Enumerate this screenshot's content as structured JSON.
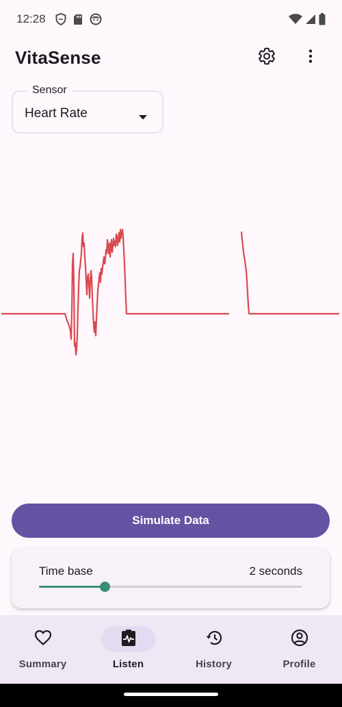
{
  "status_bar": {
    "time": "12:28",
    "left_icons": [
      "shield-icon",
      "sd-card-icon",
      "face-icon"
    ],
    "right_icons": [
      "wifi-icon",
      "signal-icon",
      "battery-icon"
    ]
  },
  "app_bar": {
    "title": "VitaSense",
    "actions": [
      "settings-icon",
      "more-vert-icon"
    ]
  },
  "sensor": {
    "label": "Sensor",
    "value": "Heart Rate"
  },
  "waveform": {
    "color": "#d94a50",
    "segments": [
      [
        [
          2,
          258
        ],
        [
          95,
          258
        ],
        [
          98,
          268
        ],
        [
          101,
          275
        ],
        [
          103,
          283
        ],
        [
          104,
          295
        ],
        [
          105,
          255
        ],
        [
          106,
          185
        ],
        [
          107,
          170
        ],
        [
          108,
          215
        ],
        [
          109,
          305
        ],
        [
          110,
          300
        ],
        [
          111,
          318
        ],
        [
          112,
          310
        ],
        [
          113,
          290
        ],
        [
          114,
          250
        ],
        [
          115,
          220
        ],
        [
          116,
          195
        ],
        [
          117,
          190
        ],
        [
          118,
          180
        ],
        [
          119,
          170
        ],
        [
          120,
          148
        ],
        [
          121,
          140
        ],
        [
          122,
          160
        ],
        [
          123,
          155
        ],
        [
          124,
          175
        ],
        [
          125,
          190
        ],
        [
          126,
          210
        ],
        [
          127,
          230
        ],
        [
          128,
          205
        ],
        [
          129,
          200
        ],
        [
          130,
          215
        ],
        [
          131,
          235
        ],
        [
          132,
          210
        ],
        [
          133,
          195
        ],
        [
          134,
          205
        ],
        [
          135,
          235
        ],
        [
          136,
          255
        ],
        [
          137,
          275
        ],
        [
          138,
          285
        ],
        [
          139,
          270
        ],
        [
          140,
          290
        ],
        [
          141,
          265
        ],
        [
          142,
          245
        ],
        [
          143,
          225
        ],
        [
          144,
          215
        ],
        [
          145,
          205
        ],
        [
          146,
          198
        ],
        [
          147,
          212
        ],
        [
          148,
          192
        ],
        [
          149,
          200
        ],
        [
          150,
          190
        ],
        [
          151,
          182
        ],
        [
          152,
          175
        ],
        [
          153,
          185
        ],
        [
          154,
          178
        ],
        [
          155,
          165
        ],
        [
          156,
          170
        ],
        [
          157,
          150
        ],
        [
          158,
          162
        ],
        [
          159,
          170
        ],
        [
          160,
          155
        ],
        [
          161,
          175
        ],
        [
          162,
          160
        ],
        [
          163,
          150
        ],
        [
          164,
          168
        ],
        [
          165,
          160
        ],
        [
          166,
          148
        ],
        [
          167,
          158
        ],
        [
          168,
          152
        ],
        [
          169,
          160
        ],
        [
          170,
          142
        ],
        [
          171,
          145
        ],
        [
          172,
          158
        ],
        [
          173,
          150
        ],
        [
          174,
          140
        ],
        [
          175,
          153
        ],
        [
          176,
          135
        ],
        [
          177,
          148
        ],
        [
          178,
          140
        ],
        [
          179,
          135
        ],
        [
          180,
          145
        ],
        [
          181,
          165
        ],
        [
          182,
          185
        ],
        [
          183,
          210
        ],
        [
          184,
          238
        ],
        [
          185,
          258
        ],
        [
          186,
          258
        ],
        [
          335,
          258
        ]
      ],
      [
        [
          353,
          138
        ],
        [
          354,
          150
        ],
        [
          355,
          158
        ],
        [
          356,
          168
        ],
        [
          357,
          175
        ],
        [
          358,
          180
        ],
        [
          359,
          188
        ],
        [
          360,
          195
        ],
        [
          361,
          210
        ],
        [
          362,
          228
        ],
        [
          363,
          245
        ],
        [
          364,
          258
        ],
        [
          365,
          258
        ],
        [
          496,
          258
        ]
      ]
    ]
  },
  "simulate_button": {
    "label": "Simulate Data",
    "color": "#6552a3"
  },
  "time_base": {
    "label": "Time base",
    "value_text": "2 seconds",
    "slider_fraction": 0.25,
    "accent": "#3a8c78"
  },
  "nav": {
    "items": [
      {
        "label": "Summary",
        "icon": "heart-icon",
        "active": false
      },
      {
        "label": "Listen",
        "icon": "monitor-heart-icon",
        "active": true
      },
      {
        "label": "History",
        "icon": "history-icon",
        "active": false
      },
      {
        "label": "Profile",
        "icon": "account-circle-icon",
        "active": false
      }
    ]
  }
}
